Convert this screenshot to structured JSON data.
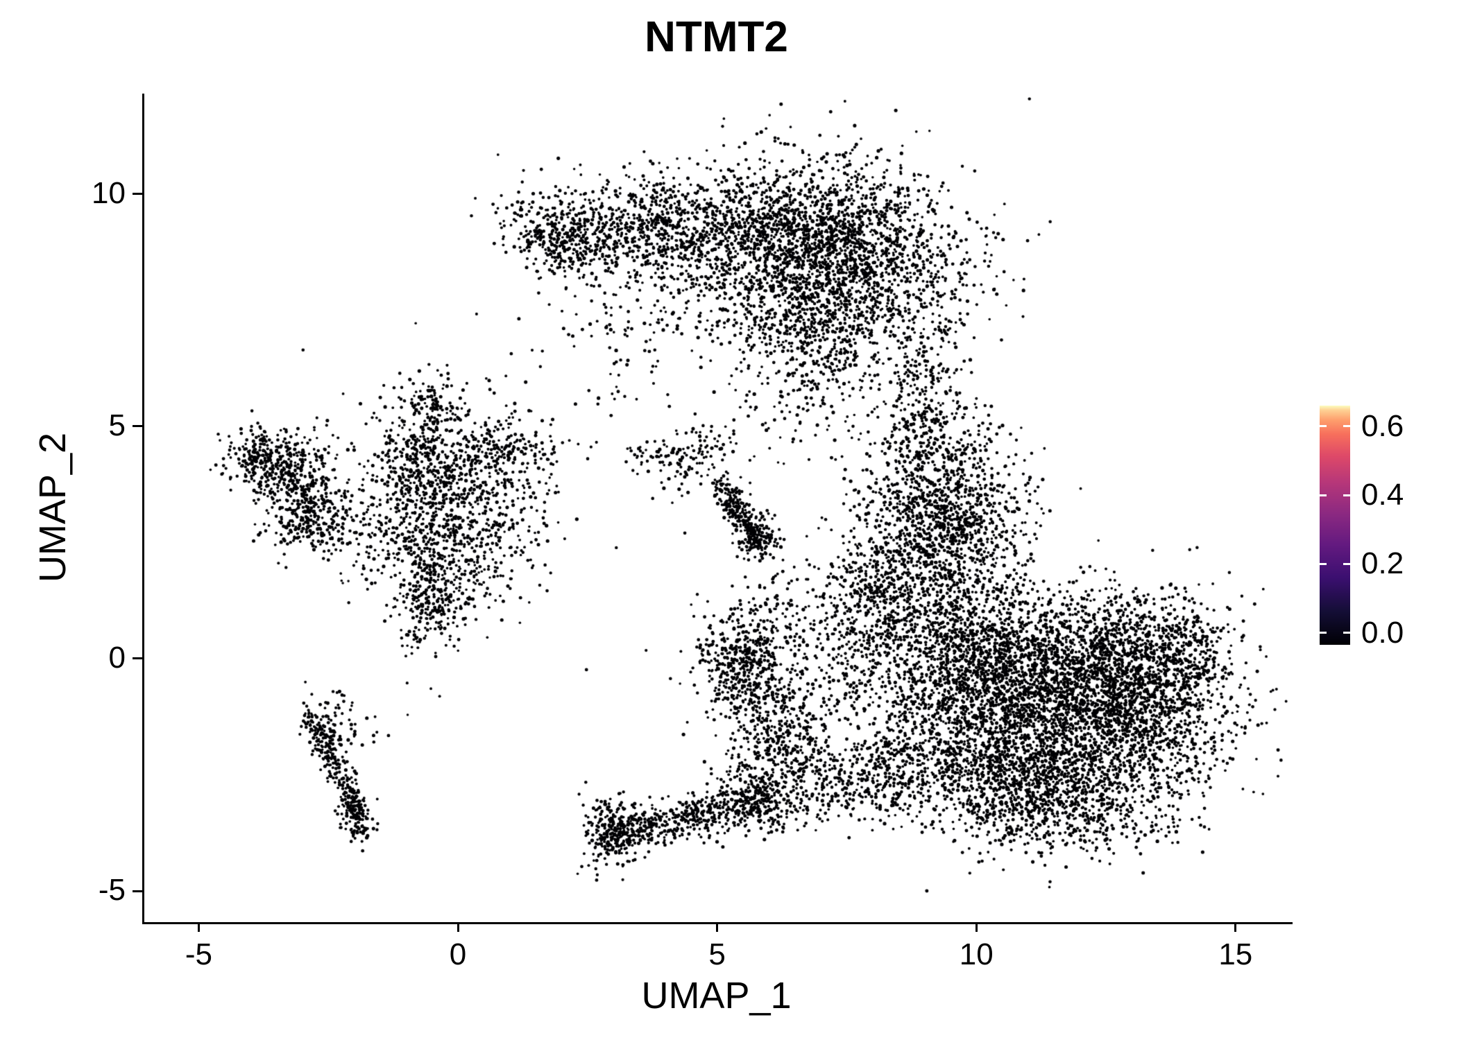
{
  "chart_data": {
    "type": "scatter",
    "title": "NTMT2",
    "xlabel": "UMAP_1",
    "ylabel": "UMAP_2",
    "xlim": [
      -6.09,
      16.06
    ],
    "ylim": [
      -5.67,
      12.16
    ],
    "x_ticks": [
      {
        "value": -5,
        "label": "-5"
      },
      {
        "value": 0,
        "label": "0"
      },
      {
        "value": 5,
        "label": "5"
      },
      {
        "value": 10,
        "label": "10"
      },
      {
        "value": 15,
        "label": "15"
      }
    ],
    "y_ticks": [
      {
        "value": -5,
        "label": "-5"
      },
      {
        "value": 0,
        "label": "0"
      },
      {
        "value": 5,
        "label": "5"
      },
      {
        "value": 10,
        "label": "10"
      }
    ],
    "grid": false,
    "legend_position": "right",
    "point_color": "#000004",
    "point_radius": 2.2,
    "n_points_approx": 19000,
    "description": "UMAP embedding of single cells colored by NTMT2 expression; nearly all cells have expression ~0 so points render black.",
    "clusters": [
      {
        "n": 2200,
        "cx": 7.3,
        "cy": 8.6,
        "sx": 1.25,
        "sy": 1.05,
        "angle": -20
      },
      {
        "n": 800,
        "cx": 5.2,
        "cy": 9.35,
        "sx": 1.4,
        "sy": 0.55,
        "angle": -8
      },
      {
        "n": 420,
        "cx": 3.1,
        "cy": 9.2,
        "sx": 1.0,
        "sy": 0.45,
        "angle": -14
      },
      {
        "n": 260,
        "cx": 1.85,
        "cy": 8.95,
        "sx": 0.55,
        "sy": 0.33,
        "angle": -28
      },
      {
        "n": 350,
        "cx": 6.9,
        "cy": 6.9,
        "sx": 0.75,
        "sy": 0.9,
        "angle": 0
      },
      {
        "n": 160,
        "cx": 4.6,
        "cy": 7.9,
        "sx": 1.1,
        "sy": 0.9,
        "angle": 0
      },
      {
        "n": 120,
        "cx": 8.9,
        "cy": 6.0,
        "sx": 0.45,
        "sy": 0.9,
        "angle": 0
      },
      {
        "n": 300,
        "cx": 8.9,
        "cy": 4.6,
        "sx": 0.5,
        "sy": 0.9,
        "angle": 0
      },
      {
        "n": 900,
        "cx": 9.2,
        "cy": 2.6,
        "sx": 0.75,
        "sy": 1.0,
        "angle": 0
      },
      {
        "n": 250,
        "cx": 8.05,
        "cy": 1.6,
        "sx": 0.6,
        "sy": 0.7,
        "angle": 0
      },
      {
        "n": 300,
        "cx": 9.9,
        "cy": 3.4,
        "sx": 0.6,
        "sy": 0.8,
        "angle": 0
      },
      {
        "n": 2600,
        "cx": 11.5,
        "cy": -1.2,
        "sx": 1.45,
        "sy": 1.15,
        "angle": 0
      },
      {
        "n": 1100,
        "cx": 12.6,
        "cy": -0.1,
        "sx": 1.0,
        "sy": 0.8,
        "angle": 0
      },
      {
        "n": 700,
        "cx": 10.3,
        "cy": -0.2,
        "sx": 0.8,
        "sy": 0.9,
        "angle": 0
      },
      {
        "n": 600,
        "cx": 10.6,
        "cy": -2.7,
        "sx": 0.9,
        "sy": 0.6,
        "angle": 0
      },
      {
        "n": 350,
        "cx": 13.5,
        "cy": -1.4,
        "sx": 0.7,
        "sy": 0.7,
        "angle": 0
      },
      {
        "n": 200,
        "cx": 14.1,
        "cy": 0.2,
        "sx": 0.35,
        "sy": 0.6,
        "angle": 0
      },
      {
        "n": 450,
        "cx": 9.4,
        "cy": 0.3,
        "sx": 0.7,
        "sy": 0.9,
        "angle": 0
      },
      {
        "n": 250,
        "cx": 9.0,
        "cy": -1.8,
        "sx": 0.6,
        "sy": 0.7,
        "angle": 0
      },
      {
        "n": 300,
        "cx": 12.0,
        "cy": -3.3,
        "sx": 0.9,
        "sy": 0.45,
        "angle": 0
      },
      {
        "n": 260,
        "cx": 7.8,
        "cy": 0.6,
        "sx": 0.7,
        "sy": 0.8,
        "angle": 0
      },
      {
        "n": 140,
        "cx": 7.0,
        "cy": -0.6,
        "sx": 0.7,
        "sy": 0.8,
        "angle": 0
      },
      {
        "n": 380,
        "cx": 7.5,
        "cy": -2.6,
        "sx": 1.0,
        "sy": 0.45,
        "angle": 0
      },
      {
        "n": 180,
        "cx": 6.3,
        "cy": -2.0,
        "sx": 0.5,
        "sy": 0.6,
        "angle": 0
      },
      {
        "n": 420,
        "cx": 5.45,
        "cy": -0.1,
        "sx": 0.42,
        "sy": 0.55,
        "angle": 0
      },
      {
        "n": 180,
        "cx": 5.9,
        "cy": -1.2,
        "sx": 0.5,
        "sy": 0.6,
        "angle": 0
      },
      {
        "n": 90,
        "cx": 6.3,
        "cy": 0.9,
        "sx": 0.8,
        "sy": 0.6,
        "angle": 0
      },
      {
        "n": 90,
        "cx": 5.75,
        "cy": 2.55,
        "sx": 0.2,
        "sy": 0.25,
        "angle": 0
      },
      {
        "n": 70,
        "cx": 4.0,
        "cy": 4.35,
        "sx": 0.45,
        "sy": 0.22,
        "angle": 0
      },
      {
        "n": 50,
        "cx": 4.85,
        "cy": 4.5,
        "sx": 0.35,
        "sy": 0.3,
        "angle": 0
      },
      {
        "n": 25,
        "cx": 4.5,
        "cy": 3.9,
        "sx": 0.5,
        "sy": 0.3,
        "angle": 0
      },
      {
        "n": 220,
        "cx": 3.0,
        "cy": -3.7,
        "sx": 0.3,
        "sy": 0.4,
        "angle": 0
      },
      {
        "n": 200,
        "cx": 5.7,
        "cy": -3.0,
        "sx": 0.45,
        "sy": 0.4,
        "angle": 0
      },
      {
        "n": 900,
        "cx": -0.3,
        "cy": 3.5,
        "sx": 0.95,
        "sy": 1.05,
        "angle": 0
      },
      {
        "n": 300,
        "cx": -0.55,
        "cy": 1.45,
        "sx": 0.3,
        "sy": 0.65,
        "angle": 0
      },
      {
        "n": 200,
        "cx": -0.75,
        "cy": 4.5,
        "sx": 0.3,
        "sy": 0.6,
        "angle": 0
      },
      {
        "n": 160,
        "cx": 0.9,
        "cy": 4.5,
        "sx": 0.55,
        "sy": 0.3,
        "angle": 0
      },
      {
        "n": 80,
        "cx": -0.4,
        "cy": 5.4,
        "sx": 0.25,
        "sy": 0.4,
        "angle": 0
      },
      {
        "n": 120,
        "cx": 0.4,
        "cy": 2.3,
        "sx": 0.7,
        "sy": 0.7,
        "angle": 0
      },
      {
        "n": 80,
        "cx": -1.5,
        "cy": 2.6,
        "sx": 0.45,
        "sy": 0.5,
        "angle": 0
      },
      {
        "n": 280,
        "cx": -3.5,
        "cy": 4.2,
        "sx": 0.5,
        "sy": 0.35,
        "angle": 0
      },
      {
        "n": 300,
        "cx": -3.05,
        "cy": 3.3,
        "sx": 0.4,
        "sy": 0.45,
        "angle": 0
      },
      {
        "n": 90,
        "cx": -3.9,
        "cy": 4.5,
        "sx": 0.25,
        "sy": 0.3,
        "angle": 0
      },
      {
        "n": 60,
        "cx": -2.6,
        "cy": 2.7,
        "sx": 0.35,
        "sy": 0.3,
        "angle": 0
      },
      {
        "n": 90,
        "cx": -2.0,
        "cy": -3.45,
        "sx": 0.18,
        "sy": 0.25,
        "angle": 0
      },
      {
        "n": 40,
        "cx": -2.55,
        "cy": -1.1,
        "sx": 0.3,
        "sy": 0.25,
        "angle": 0
      },
      {
        "n": 30,
        "cx": -2.2,
        "cy": -1.7,
        "sx": 0.35,
        "sy": 0.2,
        "angle": 0
      },
      {
        "n": 130,
        "cx": 3.6,
        "cy": 7.3,
        "sx": 1.2,
        "sy": 1.0,
        "angle": 0
      },
      {
        "n": 50,
        "cx": 6.2,
        "cy": 5.0,
        "sx": 0.8,
        "sy": 0.7,
        "angle": 0
      },
      {
        "n": 30,
        "cx": 5.0,
        "cy": 2.0,
        "sx": 3.2,
        "sy": 2.6,
        "angle": 0
      }
    ],
    "segments": [
      {
        "n": 260,
        "x1": 5.1,
        "y1": 3.7,
        "x2": 5.8,
        "y2": 2.4,
        "jx": 0.14,
        "jy": 0.14
      },
      {
        "n": 500,
        "x1": 2.75,
        "y1": -3.9,
        "x2": 6.1,
        "y2": -2.95,
        "jx": 0.18,
        "jy": 0.22
      },
      {
        "n": 260,
        "x1": -2.85,
        "y1": -1.3,
        "x2": -1.95,
        "y2": -3.35,
        "jx": 0.12,
        "jy": 0.15
      }
    ],
    "colorbar": {
      "ticks": [
        {
          "value": 0.6,
          "label": "0.6"
        },
        {
          "value": 0.4,
          "label": "0.4"
        },
        {
          "value": 0.2,
          "label": "0.2"
        },
        {
          "value": 0.0,
          "label": "0.0"
        }
      ],
      "range": [
        -0.035,
        0.66
      ],
      "stops": [
        [
          0.0,
          "#000004"
        ],
        [
          0.14,
          "#140e36"
        ],
        [
          0.28,
          "#3b0f70"
        ],
        [
          0.42,
          "#641a80"
        ],
        [
          0.55,
          "#8c2981"
        ],
        [
          0.68,
          "#b73779"
        ],
        [
          0.79,
          "#de4968"
        ],
        [
          0.88,
          "#f76f5c"
        ],
        [
          0.94,
          "#fe9f6d"
        ],
        [
          0.98,
          "#fecf92"
        ],
        [
          1.0,
          "#fcfdbf"
        ]
      ]
    }
  }
}
